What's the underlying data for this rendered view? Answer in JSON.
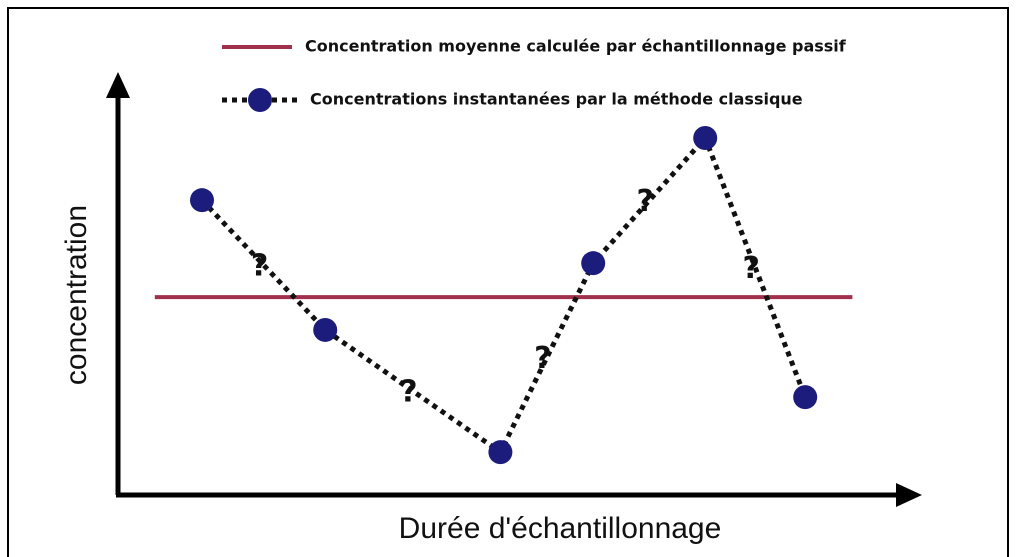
{
  "chart_data": {
    "type": "line",
    "xlabel": "Durée d'échantillonnage",
    "ylabel": "concentration",
    "xlim": [
      0,
      100
    ],
    "ylim": [
      0,
      100
    ],
    "series": [
      {
        "name": "Concentration moyenne calculée par échantillonnage passif",
        "color": "#a1304c",
        "style": "solid",
        "x": [
          4.6,
          91.8
        ],
        "values": [
          47.1,
          47.1
        ]
      },
      {
        "name": "Concentrations instantanées par la méthode classique",
        "color": "#1c1c7c",
        "style": "dotted",
        "x": [
          10.5,
          25.9,
          47.8,
          59.4,
          73.4,
          85.9
        ],
        "values": [
          70.2,
          39.3,
          10.2,
          55.2,
          85.0,
          23.3
        ]
      }
    ],
    "segment_labels": [
      "?",
      "?",
      "?",
      "?",
      "?"
    ]
  }
}
